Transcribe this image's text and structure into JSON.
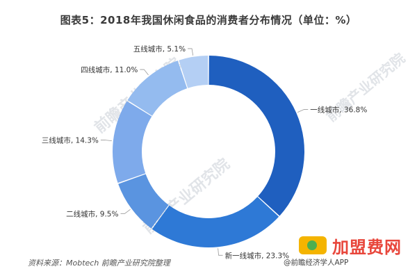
{
  "title": "图表5：2018年我国休闲食品的消费者分布情况（单位：%）",
  "source_note": "资料来源：Mobtech  前瞻产业研究院整理",
  "watermark_text": "前瞻产业研究院",
  "brand_logo_text": "加盟费网",
  "brand_sub_text": "@前瞻经济学人APP",
  "chart_data": {
    "type": "pie",
    "variant": "donut",
    "categories": [
      "一线城市",
      "新一线城市",
      "二线城市",
      "三线城市",
      "四线城市",
      "五线城市"
    ],
    "values": [
      36.8,
      23.3,
      9.5,
      14.3,
      11.0,
      5.1
    ],
    "labels": [
      "一线城市, 36.8%",
      "新一线城市, 23.3%",
      "二线城市, 9.5%",
      "三线城市, 14.3%",
      "四线城市, 11.0%",
      "五线城市, 5.1%"
    ],
    "colors": [
      "#1f5fbf",
      "#2e79d6",
      "#5a94e0",
      "#7eaaeb",
      "#94bbef",
      "#b4cff4"
    ],
    "start_angle_deg": 0,
    "direction": "clockwise",
    "legend": "none"
  }
}
